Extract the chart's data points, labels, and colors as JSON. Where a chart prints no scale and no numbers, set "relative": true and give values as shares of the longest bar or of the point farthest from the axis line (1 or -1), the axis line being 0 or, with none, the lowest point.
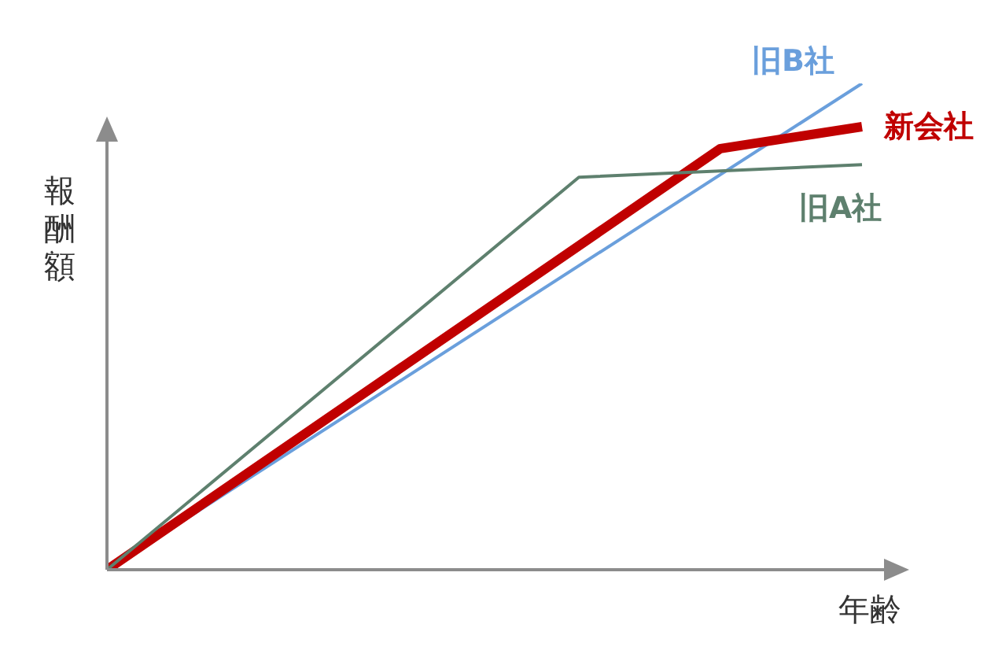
{
  "chart_data": {
    "type": "line",
    "relative": true,
    "xlabel": "年齢",
    "ylabel": "報酬額",
    "marker": "none",
    "legend": false,
    "grid": false,
    "categories": [
      null,
      null,
      null,
      null,
      null,
      null,
      null,
      null,
      null,
      null,
      null,
      null,
      null,
      null,
      null,
      null,
      null
    ],
    "series": [
      {
        "name": "旧B社",
        "color": "#6a9fdc",
        "values": [
          0,
          null,
          null,
          null,
          null,
          null,
          null,
          null,
          null,
          null,
          null,
          null,
          null,
          null,
          null,
          null,
          1
        ]
      },
      {
        "name": "新会社",
        "color": "#c00000",
        "values": [
          0,
          null,
          null,
          null,
          null,
          null,
          null,
          null,
          null,
          null,
          null,
          null,
          null,
          0.866,
          null,
          null,
          0.911
        ]
      },
      {
        "name": "旧A社",
        "color": "#5e806e",
        "values": [
          0,
          null,
          null,
          null,
          null,
          null,
          null,
          null,
          null,
          null,
          0.807,
          null,
          null,
          null,
          null,
          null,
          0.833
        ]
      }
    ]
  }
}
